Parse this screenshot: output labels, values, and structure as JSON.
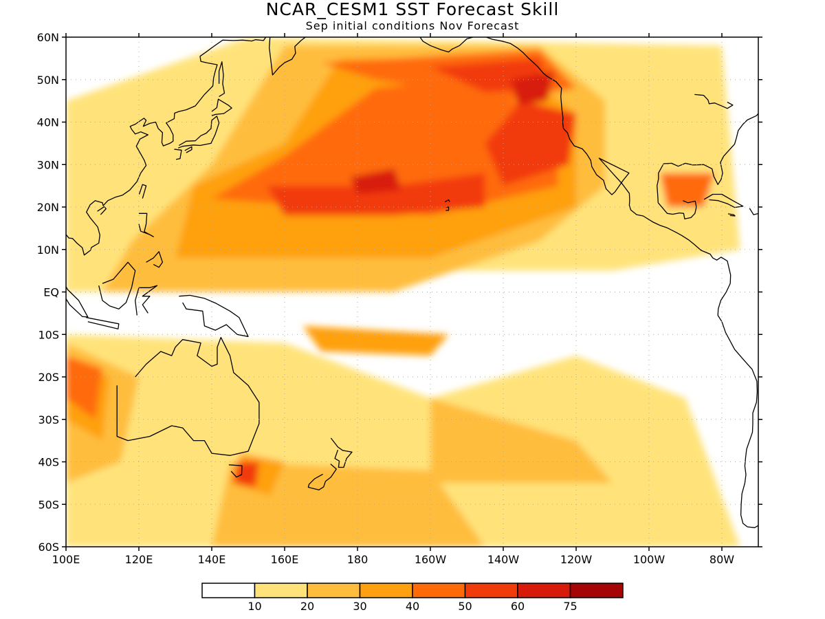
{
  "title": "NCAR_CESM1  SST Forecast Skill",
  "subtitle": "Sep initial conditions   Nov Forecast",
  "map": {
    "lon_range": [
      100,
      290
    ],
    "lat_range": [
      -60,
      60
    ],
    "lat_labels": [
      "60N",
      "50N",
      "40N",
      "30N",
      "20N",
      "10N",
      "EQ",
      "10S",
      "20S",
      "30S",
      "40S",
      "50S",
      "60S"
    ],
    "lon_labels": [
      "100E",
      "120E",
      "140E",
      "160E",
      "180",
      "160W",
      "140W",
      "120W",
      "100W",
      "80W"
    ]
  },
  "colorbar": {
    "colors": [
      "#ffffff",
      "#ffe37a",
      "#ffbd3d",
      "#ffa010",
      "#ff6a08",
      "#f23b0a",
      "#d81a0a",
      "#a50505"
    ],
    "labels": [
      "10",
      "20",
      "30",
      "40",
      "50",
      "60",
      "75"
    ]
  },
  "skill_regions": [
    {
      "level": 1,
      "pts": [
        [
          100,
          -10
        ],
        [
          160,
          -12
        ],
        [
          200,
          -25
        ],
        [
          240,
          -15
        ],
        [
          270,
          -25
        ],
        [
          285,
          -60
        ],
        [
          100,
          -60
        ]
      ]
    },
    {
      "level": 1,
      "pts": [
        [
          100,
          45
        ],
        [
          150,
          60
        ],
        [
          280,
          58
        ],
        [
          285,
          10
        ],
        [
          250,
          5
        ],
        [
          200,
          5
        ],
        [
          140,
          0
        ],
        [
          100,
          0
        ]
      ]
    },
    {
      "level": 2,
      "pts": [
        [
          110,
          0
        ],
        [
          190,
          0
        ],
        [
          230,
          12
        ],
        [
          248,
          25
        ],
        [
          248,
          45
        ],
        [
          230,
          58
        ],
        [
          160,
          58
        ],
        [
          140,
          30
        ],
        [
          118,
          12
        ]
      ]
    },
    {
      "level": 2,
      "pts": [
        [
          100,
          -12
        ],
        [
          120,
          -20
        ],
        [
          115,
          -40
        ],
        [
          100,
          -45
        ]
      ]
    },
    {
      "level": 2,
      "pts": [
        [
          145,
          -40
        ],
        [
          200,
          -42
        ],
        [
          215,
          -60
        ],
        [
          140,
          -60
        ]
      ]
    },
    {
      "level": 2,
      "pts": [
        [
          200,
          -25
        ],
        [
          240,
          -35
        ],
        [
          250,
          -45
        ],
        [
          200,
          -45
        ]
      ]
    },
    {
      "level": 3,
      "pts": [
        [
          130,
          8
        ],
        [
          200,
          8
        ],
        [
          240,
          20
        ],
        [
          240,
          42
        ],
        [
          220,
          55
        ],
        [
          175,
          55
        ],
        [
          160,
          35
        ],
        [
          135,
          25
        ]
      ]
    },
    {
      "level": 3,
      "pts": [
        [
          100,
          -15
        ],
        [
          112,
          -20
        ],
        [
          110,
          -35
        ],
        [
          100,
          -30
        ]
      ]
    },
    {
      "level": 3,
      "pts": [
        [
          165,
          -8
        ],
        [
          205,
          -10
        ],
        [
          200,
          -15
        ],
        [
          170,
          -14
        ]
      ]
    },
    {
      "level": 3,
      "pts": [
        [
          148,
          -38
        ],
        [
          160,
          -40
        ],
        [
          156,
          -48
        ],
        [
          145,
          -45
        ]
      ]
    },
    {
      "level": 4,
      "pts": [
        [
          140,
          22
        ],
        [
          200,
          18
        ],
        [
          235,
          25
        ],
        [
          235,
          40
        ],
        [
          210,
          50
        ],
        [
          185,
          48
        ],
        [
          160,
          32
        ]
      ]
    },
    {
      "level": 4,
      "pts": [
        [
          170,
          54
        ],
        [
          230,
          57
        ],
        [
          240,
          48
        ],
        [
          220,
          45
        ],
        [
          185,
          50
        ]
      ]
    },
    {
      "level": 4,
      "pts": [
        [
          100,
          -15
        ],
        [
          110,
          -18
        ],
        [
          108,
          -30
        ],
        [
          100,
          -25
        ]
      ]
    },
    {
      "level": 4,
      "pts": [
        [
          263,
          28
        ],
        [
          278,
          28
        ],
        [
          275,
          20
        ],
        [
          265,
          20
        ]
      ]
    },
    {
      "level": 5,
      "pts": [
        [
          155,
          25
        ],
        [
          190,
          25
        ],
        [
          215,
          28
        ],
        [
          215,
          20
        ],
        [
          190,
          18
        ],
        [
          160,
          18
        ]
      ]
    },
    {
      "level": 5,
      "pts": [
        [
          220,
          25
        ],
        [
          238,
          30
        ],
        [
          240,
          42
        ],
        [
          225,
          45
        ],
        [
          215,
          35
        ]
      ]
    },
    {
      "level": 5,
      "pts": [
        [
          200,
          53
        ],
        [
          230,
          55
        ],
        [
          232,
          48
        ],
        [
          215,
          47
        ]
      ]
    },
    {
      "level": 5,
      "pts": [
        [
          147,
          -40
        ],
        [
          153,
          -40
        ],
        [
          152,
          -46
        ],
        [
          146,
          -45
        ]
      ]
    },
    {
      "level": 6,
      "pts": [
        [
          178,
          27
        ],
        [
          190,
          29
        ],
        [
          192,
          24
        ],
        [
          180,
          23
        ]
      ]
    },
    {
      "level": 6,
      "pts": [
        [
          222,
          50
        ],
        [
          234,
          52
        ],
        [
          232,
          45
        ],
        [
          224,
          44
        ]
      ]
    }
  ]
}
